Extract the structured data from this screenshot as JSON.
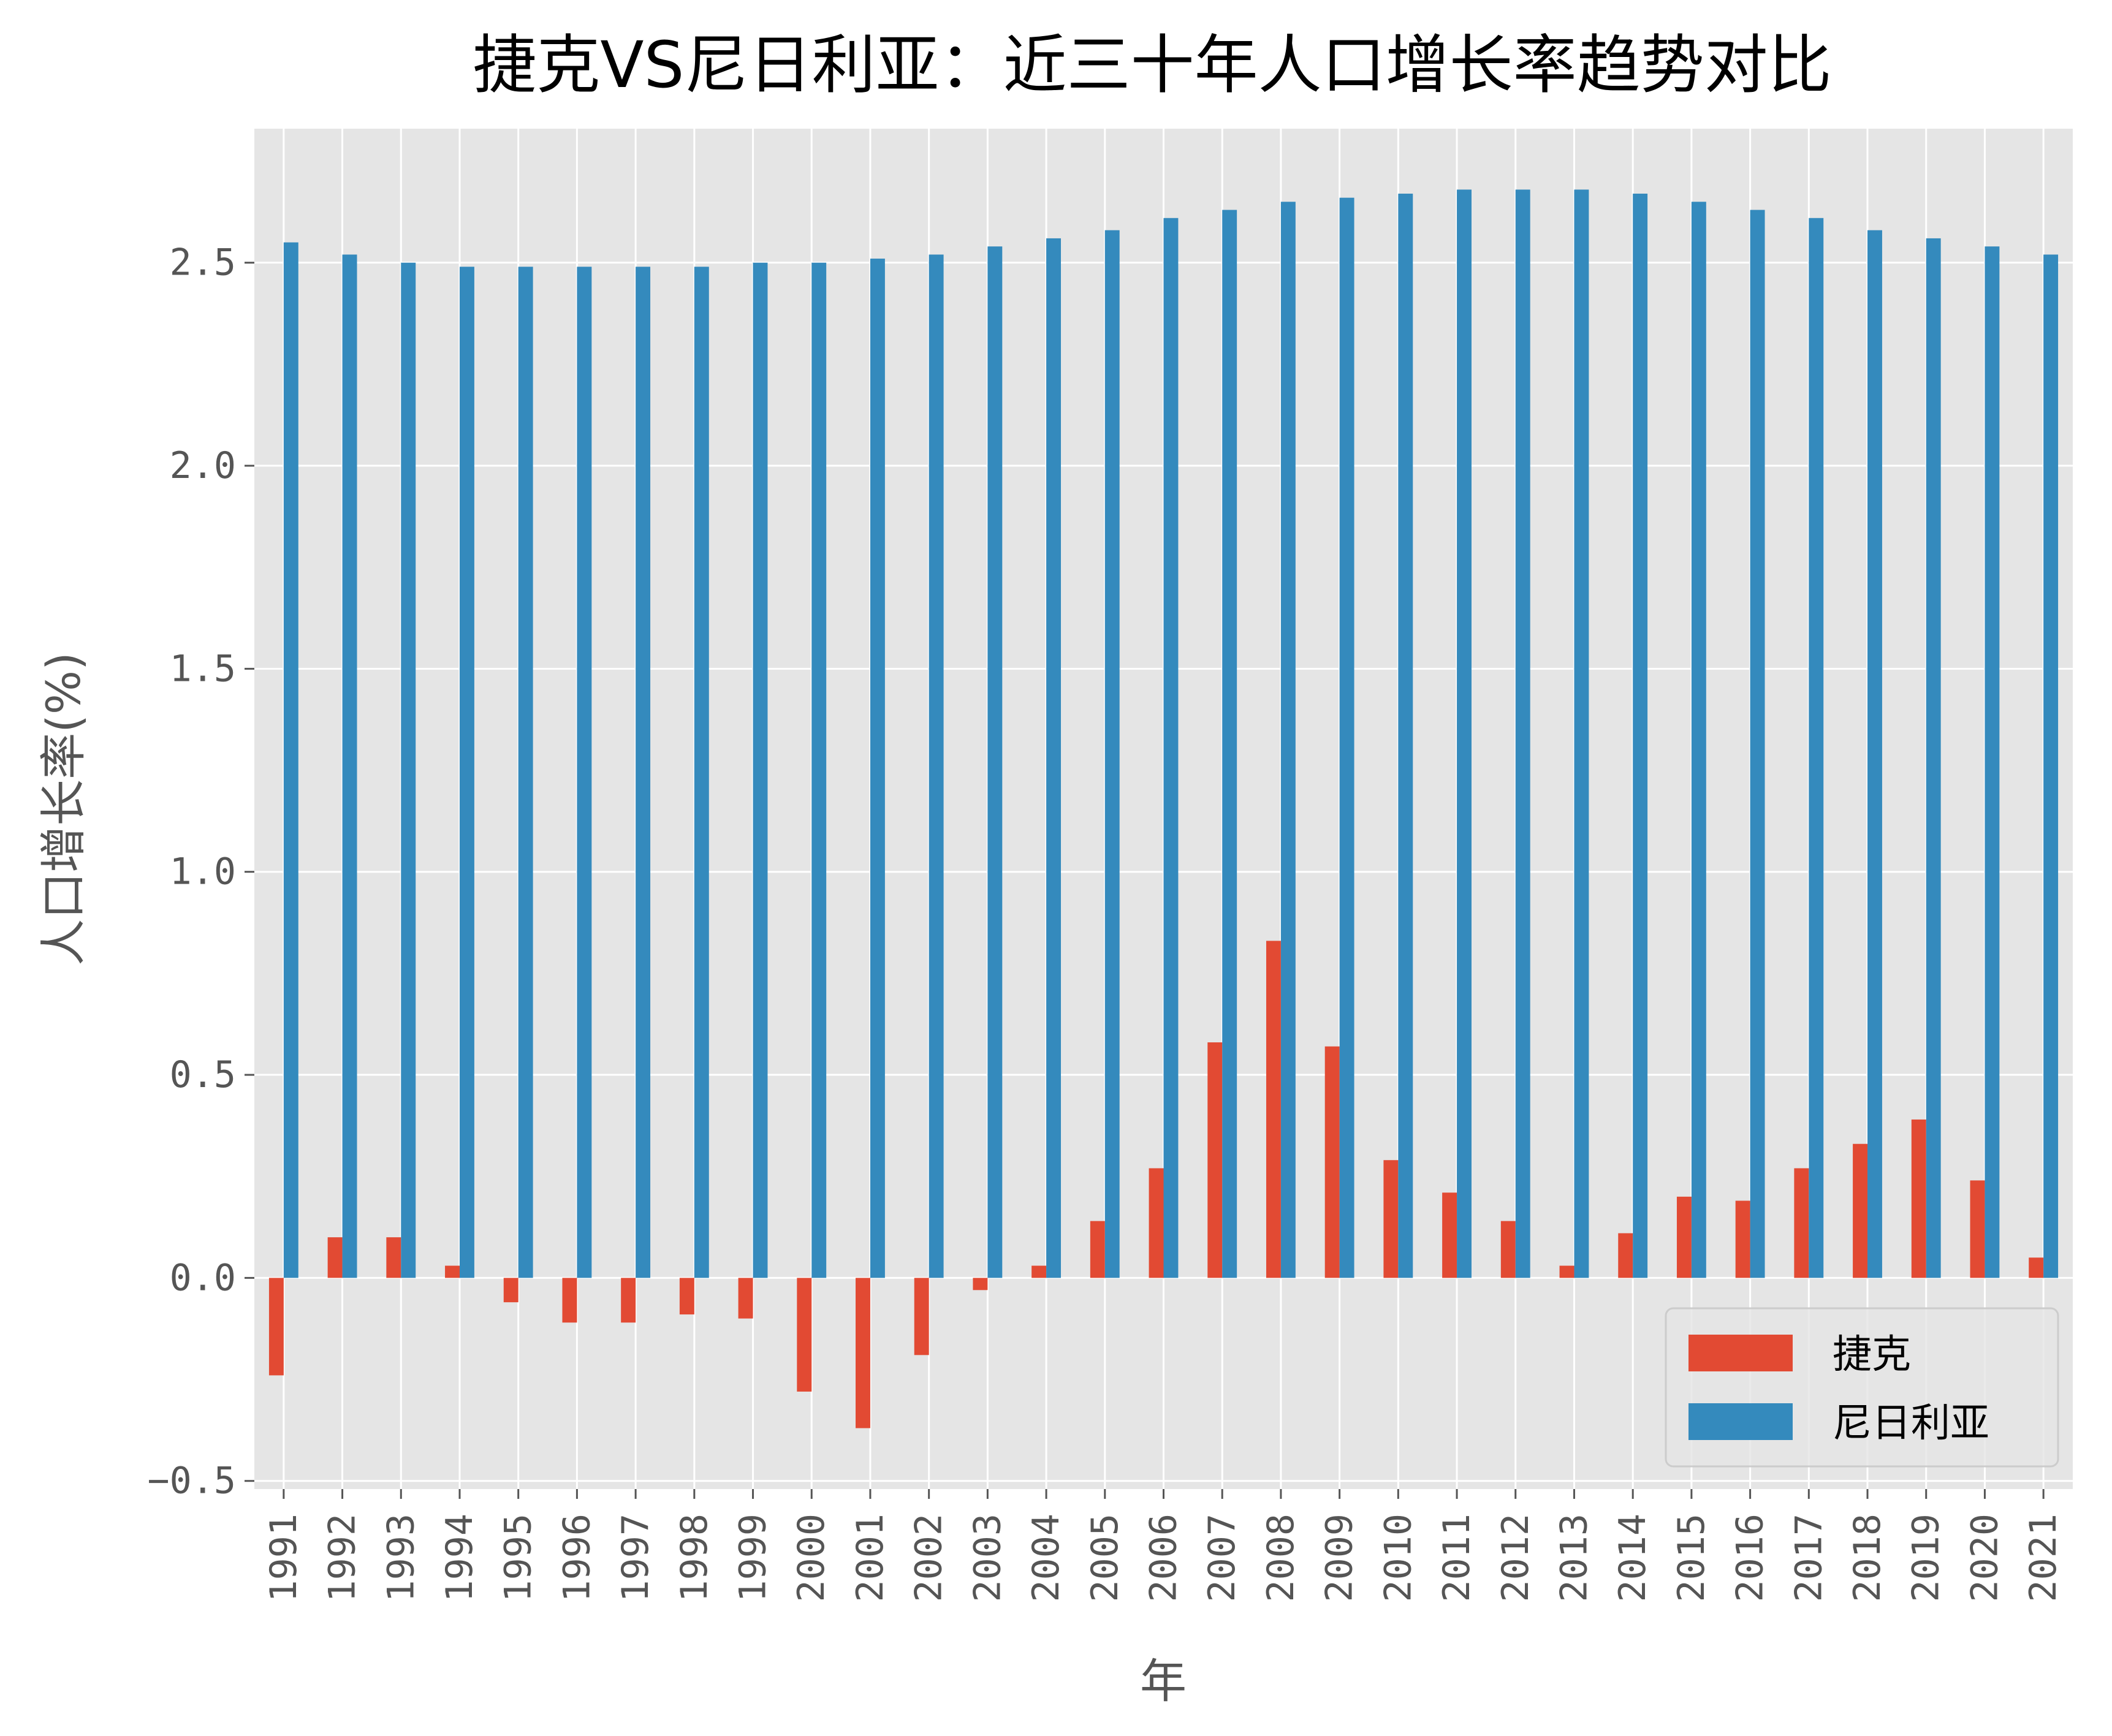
{
  "chart_data": {
    "type": "bar",
    "title": "捷克VS尼日利亚：近三十年人口增长率趋势对比",
    "xlabel": "年",
    "ylabel": "人口增长率(%)",
    "categories": [
      "1991",
      "1992",
      "1993",
      "1994",
      "1995",
      "1996",
      "1997",
      "1998",
      "1999",
      "2000",
      "2001",
      "2002",
      "2003",
      "2004",
      "2005",
      "2006",
      "2007",
      "2008",
      "2009",
      "2010",
      "2011",
      "2012",
      "2013",
      "2014",
      "2015",
      "2016",
      "2017",
      "2018",
      "2019",
      "2020",
      "2021"
    ],
    "series": [
      {
        "name": "捷克",
        "color": "#E24A33",
        "values": [
          -0.24,
          0.1,
          0.1,
          0.03,
          -0.06,
          -0.11,
          -0.11,
          -0.09,
          -0.1,
          -0.28,
          -0.37,
          -0.19,
          -0.03,
          0.03,
          0.14,
          0.27,
          0.58,
          0.83,
          0.57,
          0.29,
          0.21,
          0.14,
          0.03,
          0.11,
          0.2,
          0.19,
          0.27,
          0.33,
          0.39,
          0.24,
          0.05
        ]
      },
      {
        "name": "尼日利亚",
        "color": "#348ABD",
        "values": [
          2.55,
          2.52,
          2.5,
          2.49,
          2.49,
          2.49,
          2.49,
          2.49,
          2.5,
          2.5,
          2.51,
          2.52,
          2.54,
          2.56,
          2.58,
          2.61,
          2.63,
          2.65,
          2.66,
          2.67,
          2.68,
          2.68,
          2.68,
          2.67,
          2.65,
          2.63,
          2.61,
          2.58,
          2.56,
          2.54,
          2.52
        ]
      }
    ],
    "yticks": [
      "-0.5",
      "0.0",
      "0.5",
      "1.0",
      "1.5",
      "2.0",
      "2.5"
    ],
    "ylim": [
      -0.52,
      2.83
    ],
    "grid": true,
    "legend_position": "lower-right",
    "background_color": "#E5E5E5",
    "grid_color": "#FFFFFF"
  }
}
